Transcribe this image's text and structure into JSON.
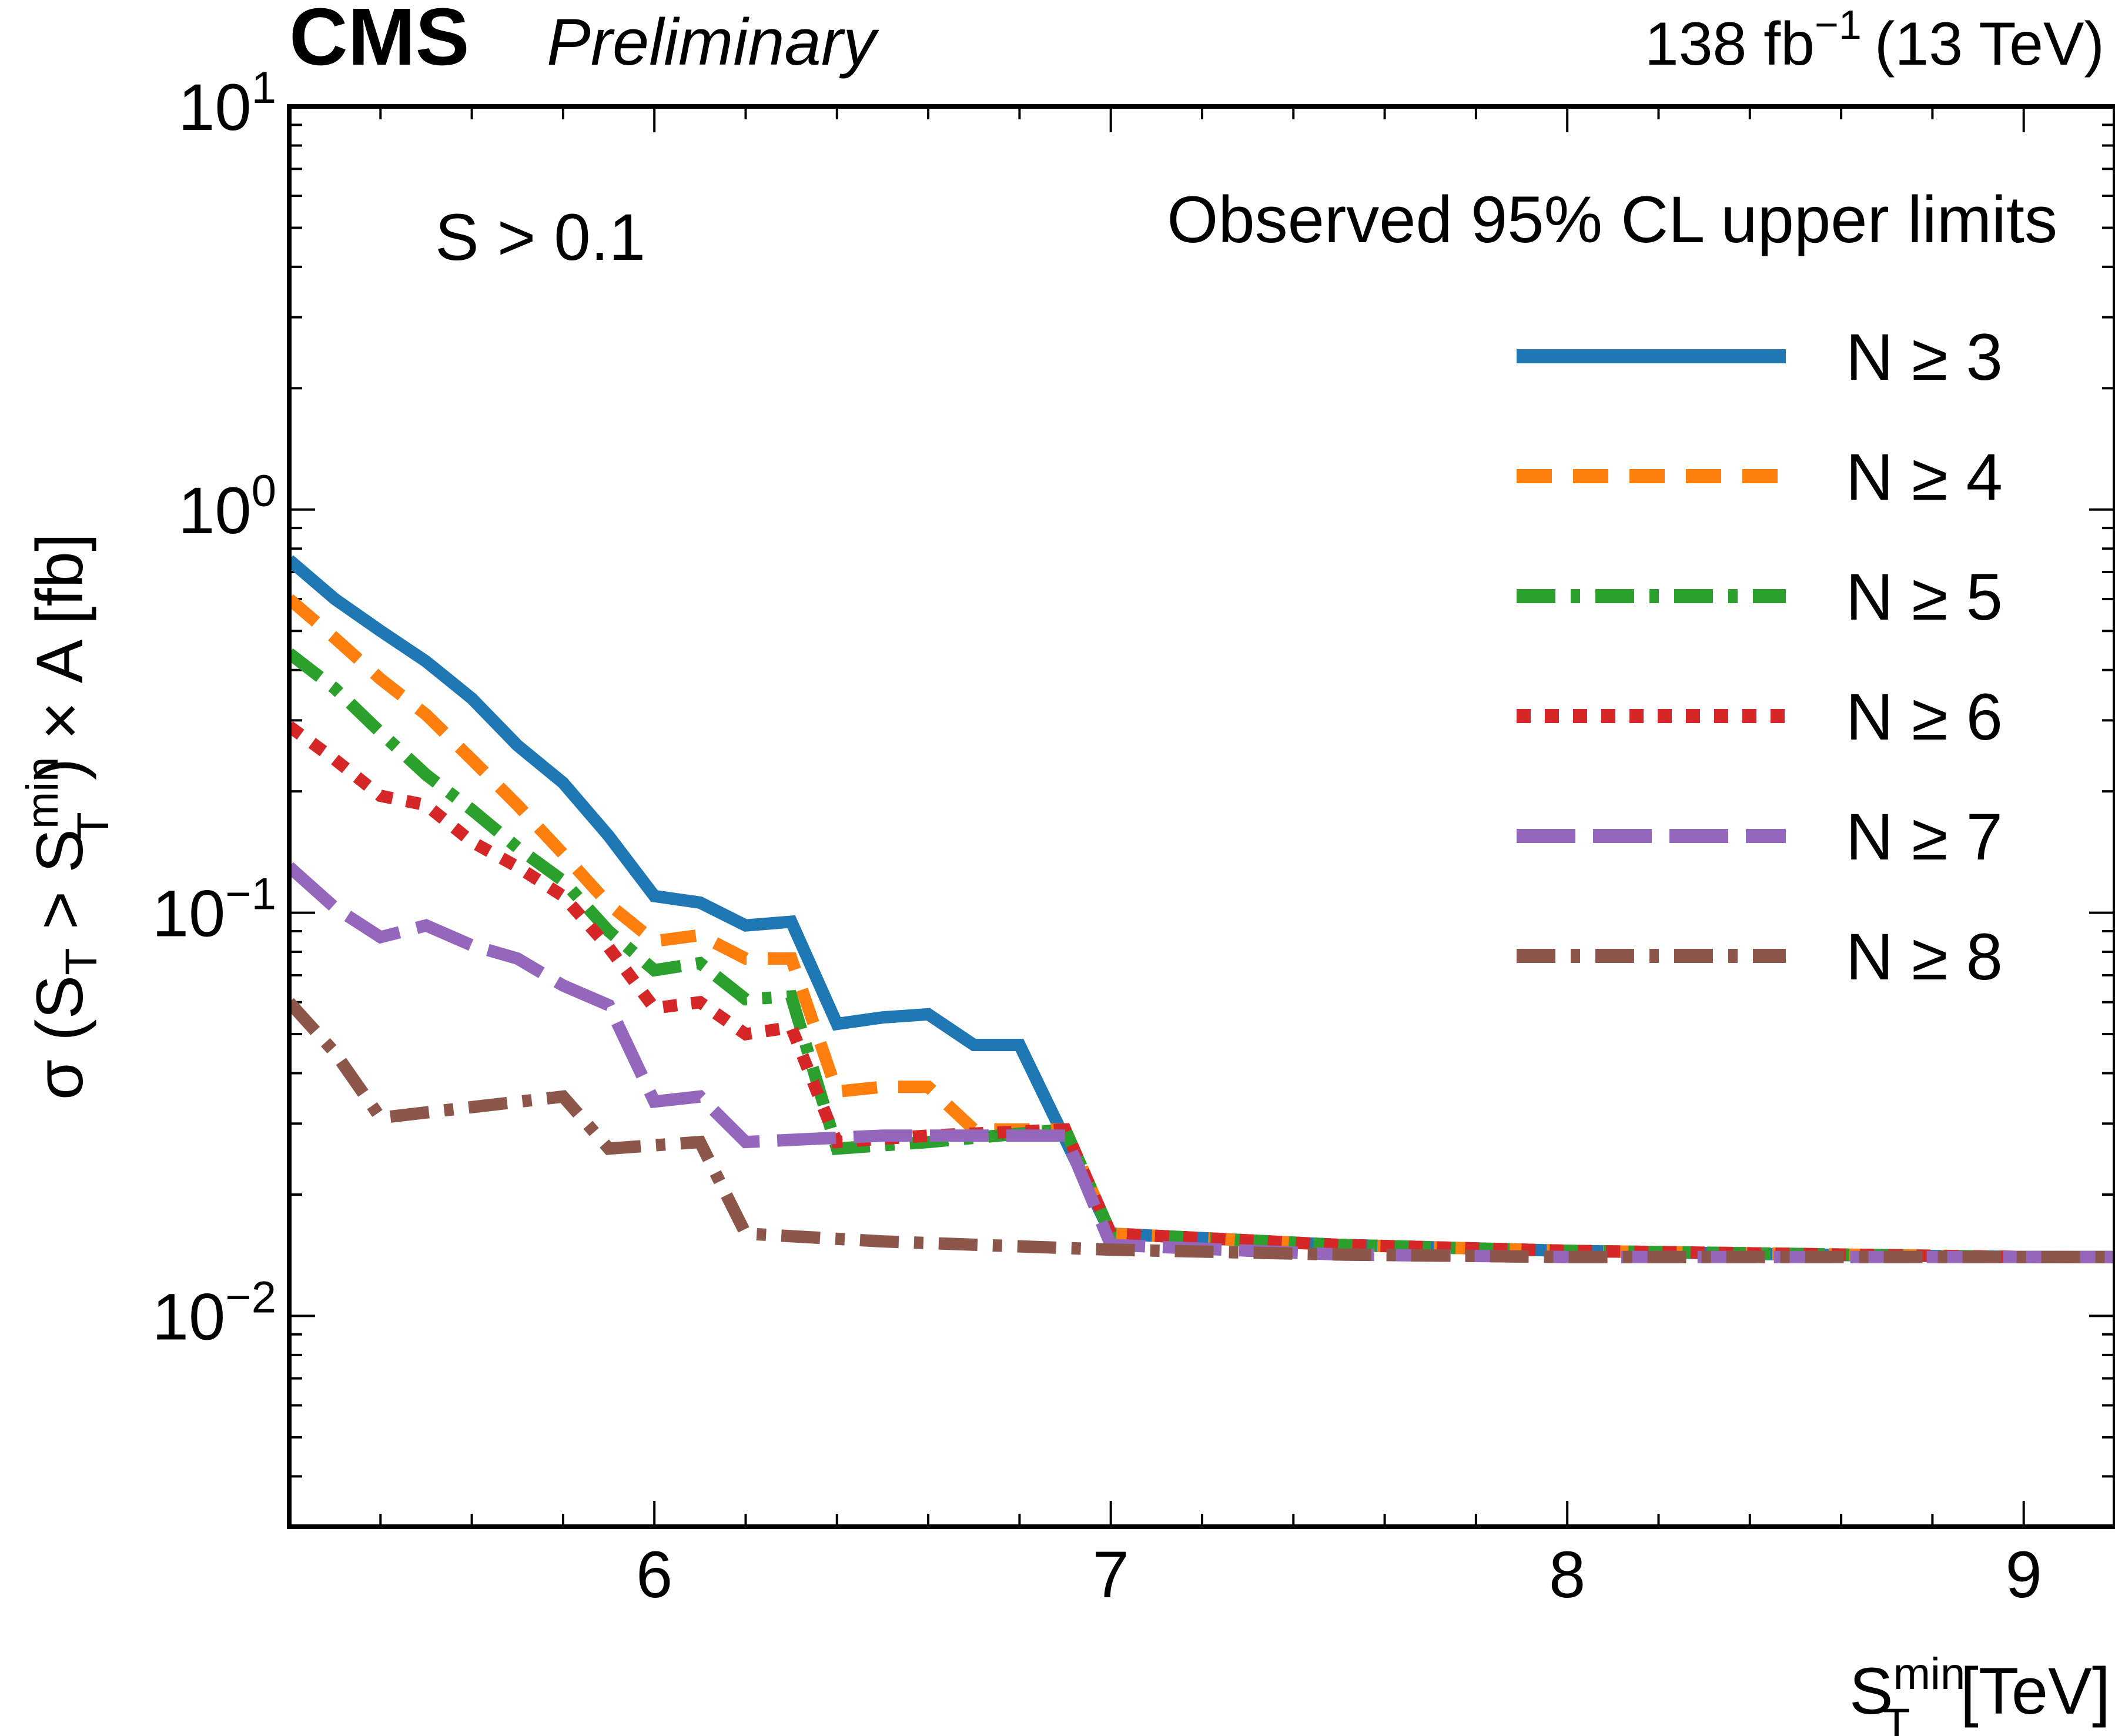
{
  "header": {
    "experiment": "CMS",
    "status": "Preliminary",
    "lumi_value": "138 fb",
    "lumi_exp": "−1",
    "energy": "(13 TeV)"
  },
  "annotations": {
    "cut": "S > 0.1",
    "legend_title": "Observed 95% CL upper limits"
  },
  "chart_data": {
    "type": "line",
    "title": "",
    "xlabel": "S_T^min [TeV]",
    "ylabel": "σ (S_T > S_T^min) × A [fb]",
    "xlim": [
      5.2,
      9.2
    ],
    "ylim": [
      0.003,
      10
    ],
    "yscale": "log",
    "grid": false,
    "legend_position": "top-right",
    "x_ticks": [
      6,
      7,
      8,
      9
    ],
    "y_ticks": [
      {
        "value": 0.01,
        "base": "10",
        "exp": "−2"
      },
      {
        "value": 0.1,
        "base": "10",
        "exp": "−1"
      },
      {
        "value": 1,
        "base": "10",
        "exp": "0"
      },
      {
        "value": 10,
        "base": "10",
        "exp": "1"
      }
    ],
    "series": [
      {
        "name": "N ≥ 3",
        "label_prefix": "N ≥ ",
        "label_num": "3",
        "color": "#1f77b4",
        "dash": "solid",
        "points": [
          [
            5.2,
            0.75
          ],
          [
            5.3,
            0.6
          ],
          [
            5.4,
            0.5
          ],
          [
            5.5,
            0.42
          ],
          [
            5.6,
            0.34
          ],
          [
            5.7,
            0.26
          ],
          [
            5.8,
            0.21
          ],
          [
            5.9,
            0.155
          ],
          [
            6.0,
            0.11
          ],
          [
            6.1,
            0.106
          ],
          [
            6.2,
            0.093
          ],
          [
            6.3,
            0.095
          ],
          [
            6.4,
            0.053
          ],
          [
            6.5,
            0.055
          ],
          [
            6.6,
            0.056
          ],
          [
            6.7,
            0.047
          ],
          [
            6.8,
            0.047
          ],
          [
            7.0,
            0.016
          ],
          [
            7.5,
            0.015
          ],
          [
            8.0,
            0.0145
          ],
          [
            8.5,
            0.0142
          ],
          [
            9.0,
            0.014
          ],
          [
            9.2,
            0.014
          ]
        ]
      },
      {
        "name": "N ≥ 4",
        "label_prefix": "N ≥ ",
        "label_num": "4",
        "color": "#ff7f0e",
        "dash": "dashed",
        "points": [
          [
            5.2,
            0.6
          ],
          [
            5.3,
            0.48
          ],
          [
            5.4,
            0.38
          ],
          [
            5.5,
            0.31
          ],
          [
            5.6,
            0.24
          ],
          [
            5.7,
            0.185
          ],
          [
            5.8,
            0.14
          ],
          [
            5.9,
            0.105
          ],
          [
            6.0,
            0.085
          ],
          [
            6.1,
            0.088
          ],
          [
            6.2,
            0.077
          ],
          [
            6.3,
            0.077
          ],
          [
            6.4,
            0.036
          ],
          [
            6.5,
            0.037
          ],
          [
            6.6,
            0.037
          ],
          [
            6.7,
            0.029
          ],
          [
            6.9,
            0.029
          ],
          [
            7.0,
            0.016
          ],
          [
            7.5,
            0.015
          ],
          [
            8.0,
            0.0145
          ],
          [
            9.0,
            0.014
          ],
          [
            9.2,
            0.014
          ]
        ]
      },
      {
        "name": "N ≥ 5",
        "label_prefix": "N ≥ ",
        "label_num": "5",
        "color": "#2ca02c",
        "dash": "dashdot",
        "points": [
          [
            5.2,
            0.44
          ],
          [
            5.3,
            0.36
          ],
          [
            5.4,
            0.28
          ],
          [
            5.5,
            0.22
          ],
          [
            5.6,
            0.18
          ],
          [
            5.7,
            0.145
          ],
          [
            5.8,
            0.12
          ],
          [
            5.9,
            0.09
          ],
          [
            6.0,
            0.072
          ],
          [
            6.1,
            0.075
          ],
          [
            6.2,
            0.061
          ],
          [
            6.3,
            0.062
          ],
          [
            6.4,
            0.026
          ],
          [
            6.6,
            0.027
          ],
          [
            6.9,
            0.029
          ],
          [
            7.0,
            0.016
          ],
          [
            7.5,
            0.015
          ],
          [
            8.0,
            0.0145
          ],
          [
            9.0,
            0.014
          ],
          [
            9.2,
            0.014
          ]
        ]
      },
      {
        "name": "N ≥ 6",
        "label_prefix": "N ≥ ",
        "label_num": "6",
        "color": "#d62728",
        "dash": "dotted",
        "points": [
          [
            5.2,
            0.29
          ],
          [
            5.3,
            0.24
          ],
          [
            5.4,
            0.195
          ],
          [
            5.5,
            0.185
          ],
          [
            5.6,
            0.15
          ],
          [
            5.7,
            0.13
          ],
          [
            5.8,
            0.11
          ],
          [
            5.9,
            0.082
          ],
          [
            6.0,
            0.058
          ],
          [
            6.1,
            0.06
          ],
          [
            6.2,
            0.05
          ],
          [
            6.3,
            0.052
          ],
          [
            6.4,
            0.027
          ],
          [
            6.6,
            0.028
          ],
          [
            6.9,
            0.029
          ],
          [
            7.0,
            0.016
          ],
          [
            7.5,
            0.015
          ],
          [
            8.0,
            0.0145
          ],
          [
            9.0,
            0.014
          ],
          [
            9.2,
            0.014
          ]
        ]
      },
      {
        "name": "N ≥ 7",
        "label_prefix": "N ≥ ",
        "label_num": "7",
        "color": "#9467bd",
        "dash": "longdash",
        "points": [
          [
            5.2,
            0.13
          ],
          [
            5.3,
            0.103
          ],
          [
            5.4,
            0.087
          ],
          [
            5.5,
            0.093
          ],
          [
            5.6,
            0.083
          ],
          [
            5.7,
            0.077
          ],
          [
            5.8,
            0.066
          ],
          [
            5.9,
            0.059
          ],
          [
            6.0,
            0.034
          ],
          [
            6.1,
            0.035
          ],
          [
            6.2,
            0.027
          ],
          [
            6.5,
            0.028
          ],
          [
            6.9,
            0.028
          ],
          [
            7.0,
            0.015
          ],
          [
            7.5,
            0.0142
          ],
          [
            8.0,
            0.014
          ],
          [
            9.0,
            0.014
          ],
          [
            9.2,
            0.014
          ]
        ]
      },
      {
        "name": "N ≥ 8",
        "label_prefix": "N ≥ ",
        "label_num": "8",
        "color": "#8c564b",
        "dash": "dashdot",
        "points": [
          [
            5.2,
            0.06
          ],
          [
            5.3,
            0.045
          ],
          [
            5.4,
            0.031
          ],
          [
            5.8,
            0.035
          ],
          [
            5.9,
            0.026
          ],
          [
            6.1,
            0.027
          ],
          [
            6.2,
            0.016
          ],
          [
            6.5,
            0.0153
          ],
          [
            7.0,
            0.0146
          ],
          [
            7.5,
            0.0142
          ],
          [
            8.0,
            0.014
          ],
          [
            9.0,
            0.014
          ],
          [
            9.2,
            0.014
          ]
        ]
      }
    ]
  }
}
